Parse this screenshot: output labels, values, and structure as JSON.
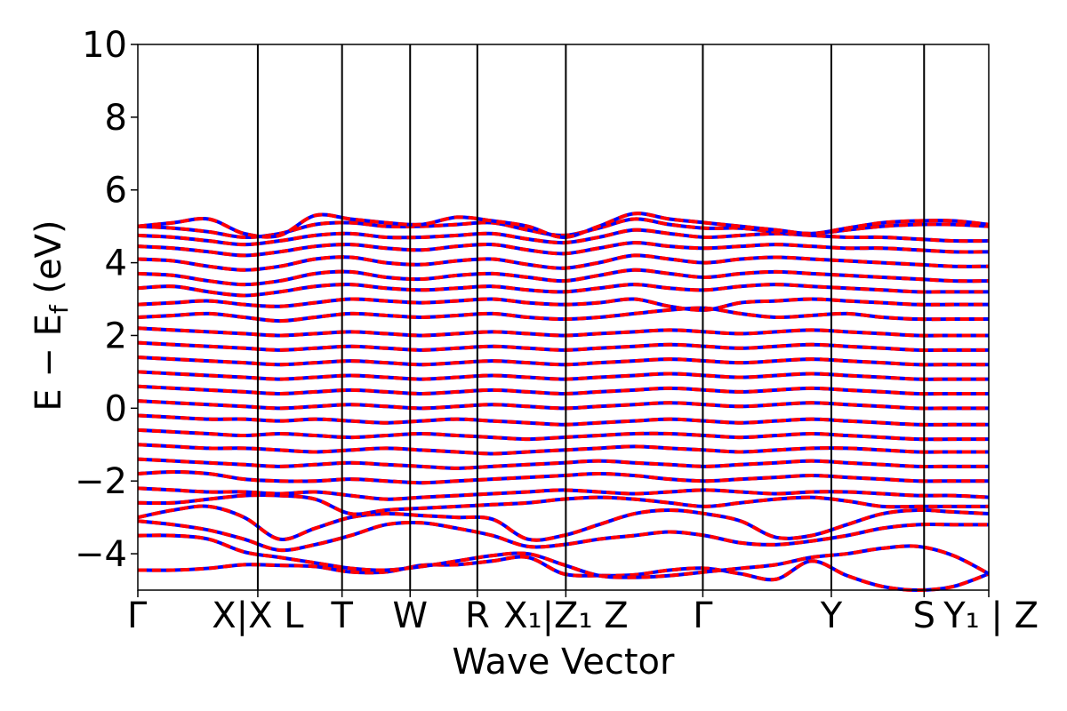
{
  "chart_data": {
    "type": "line",
    "xlabel": "Wave Vector",
    "ylabel": "E − E_f (eV)",
    "ylabel_parts": {
      "main": "E − E",
      "sub": "f",
      "unit": " (eV)"
    },
    "ylim": [
      -5,
      10
    ],
    "yticks": [
      -4,
      -2,
      0,
      2,
      4,
      6,
      8,
      10
    ],
    "ytick_labels": [
      "−4",
      "−2",
      "0",
      "2",
      "4",
      "6",
      "8",
      "10"
    ],
    "kpoint_labels": [
      {
        "pos": 0.0,
        "text": "Γ"
      },
      {
        "pos": 0.141,
        "text": "X|X L"
      },
      {
        "pos": 0.24,
        "text": "T"
      },
      {
        "pos": 0.32,
        "text": "W"
      },
      {
        "pos": 0.399,
        "text": "R"
      },
      {
        "pos": 0.503,
        "text": "X₁|Z₁ Z"
      },
      {
        "pos": 0.664,
        "text": "Γ"
      },
      {
        "pos": 0.815,
        "text": "Y"
      },
      {
        "pos": 0.924,
        "text": "S"
      },
      {
        "pos": 1.0,
        "text": "Y₁ | Z"
      }
    ],
    "kpoint_lines": [
      0.141,
      0.24,
      0.32,
      0.399,
      0.503,
      0.664,
      0.815,
      0.924
    ],
    "series": [
      {
        "color": "#0000ff",
        "linestyle": "solid"
      },
      {
        "color": "#ff0000",
        "linestyle": "dashed"
      }
    ],
    "bands": [
      [
        -4.45,
        -4.45,
        -4.4,
        -4.3,
        -4.32,
        -4.35,
        -4.5,
        -4.5,
        -4.32,
        -4.3,
        -4.2,
        -4.1,
        -4.55,
        -4.6,
        -4.58,
        -4.45,
        -4.4,
        -4.55,
        -4.7,
        -4.2,
        -4.6,
        -4.9,
        -5.0,
        -4.9,
        -4.55
      ],
      [
        -3.5,
        -3.5,
        -3.6,
        -3.95,
        -4.1,
        -4.25,
        -4.4,
        -4.45,
        -4.35,
        -4.2,
        -4.05,
        -4.0,
        -4.3,
        -4.6,
        -4.65,
        -4.6,
        -4.5,
        -4.4,
        -4.3,
        -4.1,
        -4.0,
        -3.85,
        -3.8,
        -4.05,
        -4.55
      ],
      [
        -3.1,
        -3.2,
        -3.35,
        -3.6,
        -3.9,
        -3.75,
        -3.5,
        -3.2,
        -3.15,
        -3.3,
        -3.5,
        -3.8,
        -3.75,
        -3.6,
        -3.5,
        -3.4,
        -3.5,
        -3.7,
        -3.75,
        -3.65,
        -3.5,
        -3.3,
        -3.2,
        -3.2,
        -3.2
      ],
      [
        -3.0,
        -2.8,
        -2.7,
        -3.0,
        -3.6,
        -3.3,
        -3.0,
        -2.9,
        -2.95,
        -3.0,
        -3.05,
        -3.6,
        -3.5,
        -3.2,
        -2.9,
        -2.8,
        -2.9,
        -3.1,
        -3.55,
        -3.5,
        -3.2,
        -2.9,
        -2.8,
        -2.85,
        -2.9
      ],
      [
        -2.6,
        -2.6,
        -2.5,
        -2.4,
        -2.4,
        -2.5,
        -2.9,
        -2.8,
        -2.75,
        -2.7,
        -2.65,
        -2.6,
        -2.5,
        -2.45,
        -2.5,
        -2.6,
        -2.7,
        -2.6,
        -2.5,
        -2.45,
        -2.55,
        -2.7,
        -2.7,
        -2.7,
        -2.7
      ],
      [
        -2.2,
        -2.25,
        -2.3,
        -2.3,
        -2.35,
        -2.3,
        -2.4,
        -2.5,
        -2.45,
        -2.4,
        -2.35,
        -2.3,
        -2.25,
        -2.3,
        -2.35,
        -2.3,
        -2.25,
        -2.3,
        -2.35,
        -2.3,
        -2.3,
        -2.35,
        -2.4,
        -2.4,
        -2.45
      ],
      [
        -1.8,
        -1.75,
        -1.8,
        -1.95,
        -2.0,
        -2.0,
        -1.95,
        -2.0,
        -2.05,
        -2.0,
        -1.95,
        -1.9,
        -1.85,
        -1.8,
        -1.85,
        -1.95,
        -2.0,
        -1.95,
        -1.9,
        -1.85,
        -1.9,
        -1.95,
        -2.0,
        -2.0,
        -2.0
      ],
      [
        -1.4,
        -1.45,
        -1.5,
        -1.55,
        -1.6,
        -1.55,
        -1.5,
        -1.55,
        -1.6,
        -1.65,
        -1.6,
        -1.55,
        -1.5,
        -1.45,
        -1.5,
        -1.55,
        -1.6,
        -1.55,
        -1.5,
        -1.45,
        -1.5,
        -1.55,
        -1.6,
        -1.6,
        -1.6
      ],
      [
        -1.0,
        -1.05,
        -1.1,
        -1.1,
        -1.15,
        -1.2,
        -1.15,
        -1.1,
        -1.15,
        -1.2,
        -1.25,
        -1.2,
        -1.15,
        -1.1,
        -1.05,
        -1.1,
        -1.15,
        -1.2,
        -1.15,
        -1.1,
        -1.1,
        -1.15,
        -1.2,
        -1.2,
        -1.2
      ],
      [
        -0.6,
        -0.65,
        -0.7,
        -0.75,
        -0.7,
        -0.75,
        -0.8,
        -0.75,
        -0.7,
        -0.75,
        -0.8,
        -0.85,
        -0.8,
        -0.75,
        -0.7,
        -0.7,
        -0.75,
        -0.8,
        -0.75,
        -0.7,
        -0.75,
        -0.8,
        -0.85,
        -0.85,
        -0.85
      ],
      [
        -0.2,
        -0.25,
        -0.3,
        -0.3,
        -0.35,
        -0.3,
        -0.35,
        -0.4,
        -0.35,
        -0.3,
        -0.35,
        -0.4,
        -0.45,
        -0.4,
        -0.35,
        -0.3,
        -0.35,
        -0.4,
        -0.35,
        -0.3,
        -0.35,
        -0.4,
        -0.45,
        -0.45,
        -0.45
      ],
      [
        0.2,
        0.15,
        0.1,
        0.05,
        0.0,
        0.05,
        0.1,
        0.05,
        0.0,
        0.05,
        0.1,
        0.05,
        0.0,
        0.05,
        0.1,
        0.15,
        0.1,
        0.05,
        0.1,
        0.15,
        0.1,
        0.05,
        0.0,
        0.0,
        0.0
      ],
      [
        0.6,
        0.55,
        0.5,
        0.45,
        0.4,
        0.45,
        0.5,
        0.45,
        0.4,
        0.45,
        0.5,
        0.45,
        0.4,
        0.45,
        0.5,
        0.55,
        0.5,
        0.45,
        0.5,
        0.55,
        0.5,
        0.45,
        0.4,
        0.4,
        0.4
      ],
      [
        1.0,
        0.95,
        0.9,
        0.85,
        0.8,
        0.85,
        0.9,
        0.85,
        0.8,
        0.85,
        0.9,
        0.85,
        0.8,
        0.85,
        0.9,
        0.95,
        0.9,
        0.85,
        0.9,
        0.95,
        0.9,
        0.85,
        0.8,
        0.8,
        0.8
      ],
      [
        1.4,
        1.35,
        1.3,
        1.25,
        1.2,
        1.25,
        1.3,
        1.25,
        1.2,
        1.25,
        1.3,
        1.25,
        1.2,
        1.25,
        1.3,
        1.35,
        1.3,
        1.25,
        1.3,
        1.35,
        1.3,
        1.25,
        1.2,
        1.2,
        1.2
      ],
      [
        1.8,
        1.75,
        1.7,
        1.65,
        1.6,
        1.65,
        1.7,
        1.65,
        1.6,
        1.65,
        1.7,
        1.65,
        1.6,
        1.65,
        1.7,
        1.75,
        1.7,
        1.65,
        1.7,
        1.75,
        1.7,
        1.65,
        1.6,
        1.6,
        1.6
      ],
      [
        2.2,
        2.15,
        2.1,
        2.05,
        2.0,
        2.05,
        2.1,
        2.05,
        2.0,
        2.05,
        2.1,
        2.05,
        2.0,
        2.05,
        2.1,
        2.15,
        2.1,
        2.05,
        2.1,
        2.15,
        2.1,
        2.05,
        2.0,
        2.0,
        2.0
      ],
      [
        2.5,
        2.55,
        2.6,
        2.5,
        2.4,
        2.5,
        2.6,
        2.55,
        2.5,
        2.55,
        2.6,
        2.5,
        2.45,
        2.5,
        2.6,
        2.7,
        2.75,
        2.6,
        2.5,
        2.55,
        2.6,
        2.5,
        2.45,
        2.45,
        2.45
      ],
      [
        2.85,
        2.9,
        2.95,
        2.85,
        2.8,
        2.9,
        3.0,
        2.95,
        2.9,
        2.95,
        3.0,
        2.9,
        2.85,
        2.9,
        3.0,
        2.8,
        2.7,
        2.9,
        2.95,
        3.0,
        2.95,
        2.9,
        2.85,
        2.85,
        2.85
      ],
      [
        3.3,
        3.35,
        3.2,
        3.1,
        3.2,
        3.35,
        3.4,
        3.3,
        3.25,
        3.3,
        3.35,
        3.25,
        3.2,
        3.3,
        3.4,
        3.3,
        3.25,
        3.35,
        3.4,
        3.35,
        3.3,
        3.25,
        3.2,
        3.2,
        3.2
      ],
      [
        3.7,
        3.65,
        3.5,
        3.4,
        3.5,
        3.7,
        3.75,
        3.6,
        3.55,
        3.65,
        3.7,
        3.6,
        3.5,
        3.65,
        3.8,
        3.7,
        3.6,
        3.7,
        3.75,
        3.7,
        3.65,
        3.6,
        3.55,
        3.5,
        3.5
      ],
      [
        4.1,
        4.05,
        3.9,
        3.8,
        3.9,
        4.1,
        4.15,
        4.0,
        3.95,
        4.05,
        4.1,
        3.95,
        3.85,
        4.0,
        4.2,
        4.1,
        4.0,
        4.1,
        4.15,
        4.1,
        4.05,
        4.0,
        3.95,
        3.9,
        3.9
      ],
      [
        4.45,
        4.4,
        4.3,
        4.2,
        4.3,
        4.45,
        4.5,
        4.4,
        4.35,
        4.45,
        4.5,
        4.35,
        4.25,
        4.4,
        4.55,
        4.45,
        4.4,
        4.45,
        4.5,
        4.45,
        4.4,
        4.4,
        4.35,
        4.3,
        4.3
      ],
      [
        4.75,
        4.7,
        4.6,
        4.5,
        4.6,
        4.75,
        4.8,
        4.7,
        4.7,
        4.75,
        4.8,
        4.65,
        4.55,
        4.7,
        4.9,
        4.8,
        4.7,
        4.75,
        4.8,
        4.75,
        4.7,
        4.7,
        4.65,
        4.6,
        4.6
      ],
      [
        5.0,
        4.95,
        4.85,
        4.7,
        4.8,
        5.05,
        5.1,
        5.0,
        5.0,
        5.05,
        5.1,
        4.9,
        4.75,
        4.95,
        5.2,
        5.05,
        4.95,
        4.95,
        4.85,
        4.8,
        4.9,
        5.0,
        5.05,
        5.05,
        5.0
      ],
      [
        5.0,
        5.1,
        5.2,
        4.8,
        4.75,
        5.3,
        5.2,
        5.1,
        5.05,
        5.25,
        5.15,
        5.0,
        4.7,
        5.0,
        5.35,
        5.2,
        5.1,
        5.0,
        4.9,
        4.8,
        4.95,
        5.1,
        5.15,
        5.15,
        5.05
      ]
    ]
  }
}
